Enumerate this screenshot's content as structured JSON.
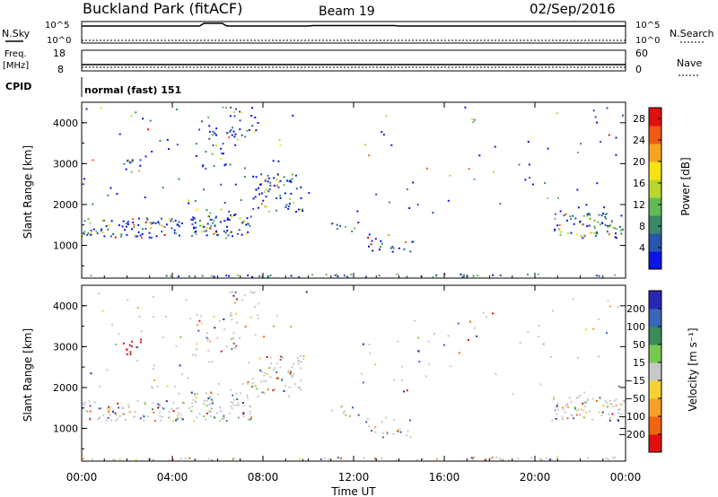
{
  "header": {
    "station": "Buckland Park (fitACF)",
    "beam": "Beam 19",
    "date": "02/Sep/2016"
  },
  "summary_panels": {
    "nsky": {
      "label": "N.Sky",
      "ticks": [
        "10^5",
        "10^0"
      ]
    },
    "nsearch": {
      "label": "N.Search",
      "ticks": [
        "10^5",
        "10^0"
      ]
    },
    "freq": {
      "label_line1": "Freq.",
      "label_line2": "[MHz]",
      "ticks": [
        "18",
        "8"
      ]
    },
    "nave": {
      "label": "Nave",
      "ticks": [
        "60",
        "0"
      ]
    },
    "cpid": {
      "label": "CPID",
      "value": "normal (fast) 151"
    }
  },
  "chart_data": [
    {
      "type": "heatmap",
      "name_panel": "power",
      "xlabel": "Time UT",
      "ylabel": "Slant Range [km]",
      "xlim_hours": [
        0,
        24
      ],
      "ylim": [
        200,
        4500
      ],
      "x_ticks": [
        "00:00",
        "04:00",
        "08:00",
        "12:00",
        "16:00",
        "20:00",
        "00:00"
      ],
      "x_tick_hours": [
        0,
        4,
        8,
        12,
        16,
        20,
        24
      ],
      "y_ticks": [
        1000,
        2000,
        3000,
        4000
      ],
      "colorbar": {
        "label": "Power [dB]",
        "ticks": [
          4,
          8,
          12,
          16,
          20,
          24,
          28
        ],
        "range": [
          0,
          30
        ],
        "colors": [
          "#0b14e6",
          "#2a55ad",
          "#3a8a6a",
          "#63b957",
          "#b9d62e",
          "#f5e412",
          "#f6a420",
          "#f05a14",
          "#e01010"
        ]
      }
    },
    {
      "type": "heatmap",
      "name_panel": "velocity",
      "xlabel": "Time UT",
      "ylabel": "Slant Range [km]",
      "xlim_hours": [
        0,
        24
      ],
      "ylim": [
        200,
        4500
      ],
      "x_ticks": [
        "00:00",
        "04:00",
        "08:00",
        "12:00",
        "16:00",
        "20:00",
        "00:00"
      ],
      "x_tick_hours": [
        0,
        4,
        8,
        12,
        16,
        20,
        24
      ],
      "y_ticks": [
        1000,
        2000,
        3000,
        4000
      ],
      "colorbar": {
        "label": "Velocity [m s⁻¹]",
        "ticks": [
          "200",
          "100",
          "50",
          "15",
          "−15",
          "−50",
          "−100",
          "−200"
        ],
        "range": [
          -250,
          250
        ],
        "colors": [
          "#2828b4",
          "#3a66b8",
          "#3a8a5a",
          "#78c850",
          "#c8c8c8",
          "#f5d232",
          "#f5a028",
          "#f06414",
          "#e01010"
        ]
      }
    }
  ]
}
